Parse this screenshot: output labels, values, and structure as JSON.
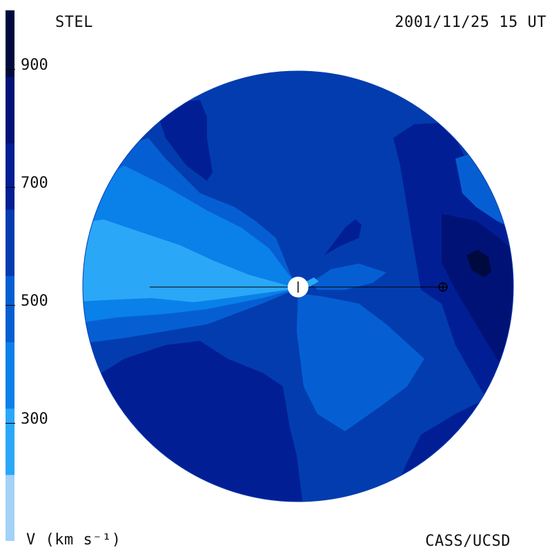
{
  "header": {
    "source": "STEL",
    "timestamp": "2001/11/25 15 UT"
  },
  "footer": {
    "credit": "CASS/UCSD",
    "units": "V (km s⁻¹)"
  },
  "legend": {
    "ticks": [
      "900",
      "700",
      "500",
      "300"
    ],
    "bands": [
      {
        "color": "#A3D2F6",
        "min": 200,
        "max": 300
      },
      {
        "color": "#2BA7F8",
        "min": 300,
        "max": 400
      },
      {
        "color": "#0A80E9",
        "min": 400,
        "max": 500
      },
      {
        "color": "#065FD2",
        "min": 500,
        "max": 600
      },
      {
        "color": "#033CAF",
        "min": 600,
        "max": 700
      },
      {
        "color": "#021E95",
        "min": 700,
        "max": 800
      },
      {
        "color": "#011276",
        "min": 800,
        "max": 900
      },
      {
        "color": "#010A3F",
        "min": 900,
        "max": 1000
      }
    ]
  },
  "map": {
    "background_color": "#033CAF",
    "markers": [
      "sun",
      "earth"
    ]
  }
}
